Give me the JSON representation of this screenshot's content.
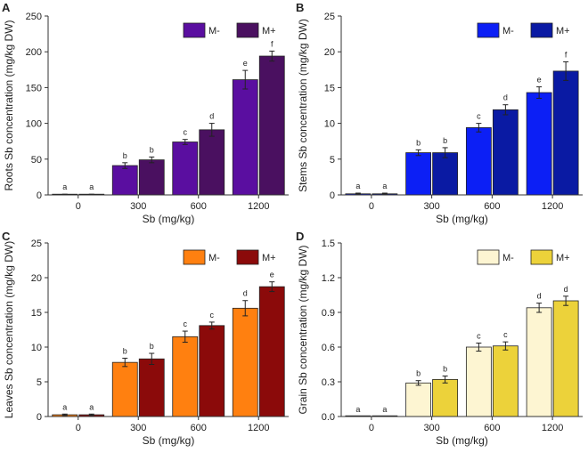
{
  "chart_data": [
    {
      "panel_letter": "A",
      "type": "bar",
      "xlabel": "Sb (mg/kg)",
      "ylabel": "Roots Sb concentration (mg/kg DW)",
      "ylim": [
        0,
        250
      ],
      "yticks": [
        "0",
        "50",
        "100",
        "150",
        "200",
        "250"
      ],
      "categories": [
        "0",
        "300",
        "600",
        "1200"
      ],
      "series": [
        {
          "name": "M-",
          "color": "#5a0ea0",
          "values": [
            0.5,
            41,
            74,
            161
          ],
          "errors": [
            0.5,
            4,
            3.5,
            13
          ],
          "letters": [
            "a",
            "b",
            "c",
            "e"
          ]
        },
        {
          "name": "M+",
          "color": "#4a1060",
          "values": [
            0.5,
            49,
            91,
            194
          ],
          "errors": [
            0.5,
            4,
            9,
            7
          ],
          "letters": [
            "a",
            "b",
            "d",
            "f"
          ]
        }
      ]
    },
    {
      "panel_letter": "B",
      "type": "bar",
      "xlabel": "Sb (mg/kg)",
      "ylabel": "Stems Sb concentration (mg/kg DW)",
      "ylim": [
        0,
        25
      ],
      "yticks": [
        "0",
        "5",
        "10",
        "15",
        "20",
        "25"
      ],
      "categories": [
        "0",
        "300",
        "600",
        "1200"
      ],
      "series": [
        {
          "name": "M-",
          "color": "#0c1ff5",
          "values": [
            0.15,
            5.9,
            9.4,
            14.3
          ],
          "errors": [
            0.1,
            0.4,
            0.6,
            0.8
          ],
          "letters": [
            "a",
            "b",
            "c",
            "e"
          ]
        },
        {
          "name": "M+",
          "color": "#0a1aa3",
          "values": [
            0.15,
            5.9,
            11.9,
            17.3
          ],
          "errors": [
            0.1,
            0.7,
            0.7,
            1.3
          ],
          "letters": [
            "a",
            "b",
            "d",
            "f"
          ]
        }
      ]
    },
    {
      "panel_letter": "C",
      "type": "bar",
      "xlabel": "Sb (mg/kg)",
      "ylabel": "Leaves Sb concentration (mg/kg DW)",
      "ylim": [
        0,
        25
      ],
      "yticks": [
        "0",
        "5",
        "10",
        "15",
        "20",
        "25"
      ],
      "categories": [
        "0",
        "300",
        "600",
        "1200"
      ],
      "series": [
        {
          "name": "M-",
          "color": "#ff8010",
          "values": [
            0.25,
            7.8,
            11.5,
            15.6
          ],
          "errors": [
            0.1,
            0.6,
            0.8,
            1.1
          ],
          "letters": [
            "a",
            "b",
            "c",
            "d"
          ]
        },
        {
          "name": "M+",
          "color": "#8b0a0a",
          "values": [
            0.25,
            8.3,
            13.1,
            18.7
          ],
          "errors": [
            0.1,
            0.8,
            0.5,
            0.7
          ],
          "letters": [
            "a",
            "b",
            "c",
            "e"
          ]
        }
      ]
    },
    {
      "panel_letter": "D",
      "type": "bar",
      "xlabel": "Sb (mg/kg)",
      "ylabel": "Grain Sb concentration (mg/kg DW)",
      "ylim": [
        0,
        1.5
      ],
      "yticks": [
        "0.0",
        "0.3",
        "0.6",
        "0.9",
        "1.2",
        "1.5"
      ],
      "categories": [
        "0",
        "300",
        "600",
        "1200"
      ],
      "series": [
        {
          "name": "M-",
          "color": "#fdf5d2",
          "values": [
            0,
            0.29,
            0.6,
            0.94
          ],
          "errors": [
            0,
            0.02,
            0.035,
            0.04
          ],
          "letters": [
            "a",
            "b",
            "c",
            "d"
          ]
        },
        {
          "name": "M+",
          "color": "#ecd23a",
          "values": [
            0,
            0.32,
            0.61,
            1.0
          ],
          "errors": [
            0,
            0.03,
            0.035,
            0.04
          ],
          "letters": [
            "a",
            "b",
            "c",
            "d"
          ]
        }
      ]
    }
  ]
}
